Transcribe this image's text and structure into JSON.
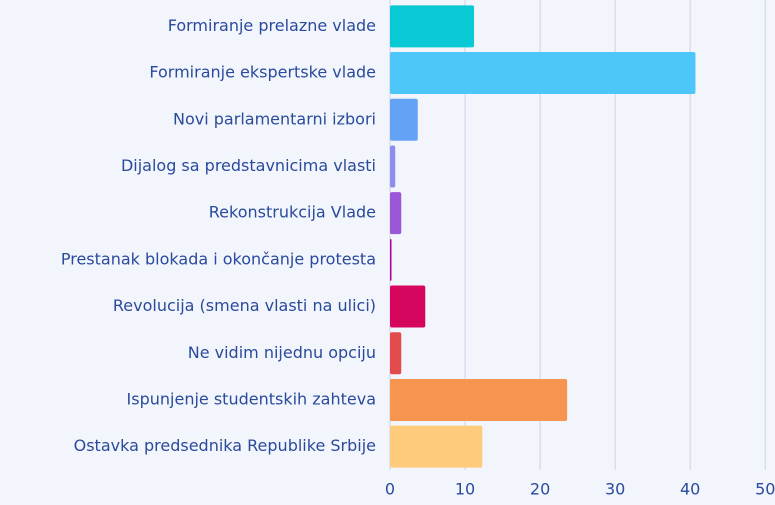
{
  "chart_data": {
    "type": "bar",
    "orientation": "horizontal",
    "categories": [
      "Formiranje prelazne vlade",
      "Formiranje ekspertske vlade",
      "Novi parlamentarni izbori",
      "Dijalog sa predstavnicima vlasti",
      "Rekonstrukcija Vlade",
      "Prestanak blokada i okončanje protesta",
      "Revolucija (smena vlasti na ulici)",
      "Ne vidim nijednu opciju",
      "Ispunjenje studentskih zahteva",
      "Ostavka predsednika Republike Srbije"
    ],
    "values": [
      11.2,
      40.7,
      3.7,
      0.7,
      1.5,
      0.2,
      4.7,
      1.5,
      23.6,
      12.3
    ],
    "colors": [
      "#08c9d4",
      "#4dc6fa",
      "#63a3f5",
      "#8d8ded",
      "#9c57d8",
      "#b5008f",
      "#d6065f",
      "#e24c4c",
      "#f7944f",
      "#fdcb7b"
    ],
    "xlim": [
      0,
      51.3
    ],
    "xticks": [
      0,
      10,
      20,
      30,
      40,
      50
    ],
    "grid": true
  }
}
